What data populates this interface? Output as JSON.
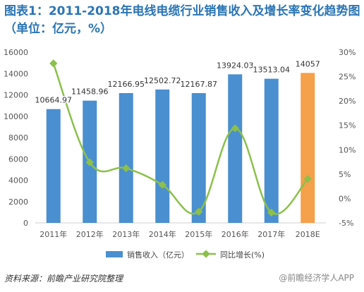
{
  "title": "图表1：2011-2018年电线电缆行业销售收入及增长率变化趋势图（单位：亿元，%）",
  "source": "资料来源：前瞻产业研究院整理",
  "watermark": "@前瞻经济学人APP",
  "colors": {
    "title": "#2a75b5",
    "bar": "#4a8fcf",
    "bar_estimate": "#f5a04a",
    "line": "#8cc04b"
  },
  "chart_data": {
    "type": "bar",
    "categories": [
      "2011年",
      "2012年",
      "2013年",
      "2014年",
      "2015年",
      "2016年",
      "2017年",
      "2018E"
    ],
    "series": [
      {
        "name": "销售收入（亿元）",
        "type": "bar",
        "axis": "left",
        "values": [
          10664.97,
          11458.96,
          12166.95,
          12502.72,
          12167.87,
          13924.03,
          13513.04,
          14057
        ],
        "data_labels": [
          "10664.97",
          "11458.96",
          "12166.95",
          "12502.72",
          "12167.87",
          "13924.03",
          "13513.04",
          "14057"
        ],
        "estimate_index": 7
      },
      {
        "name": "同比增长(%)",
        "type": "line",
        "axis": "right",
        "values": [
          27.7,
          7.4,
          6.2,
          2.8,
          -2.7,
          14.4,
          -2.9,
          4.0
        ]
      }
    ],
    "y_left": {
      "ticks": [
        "0",
        "2000",
        "4000",
        "6000",
        "8000",
        "10000",
        "12000",
        "14000",
        "16000"
      ],
      "min": 0,
      "max": 16000
    },
    "y_right": {
      "ticks": [
        "-5%",
        "0%",
        "5%",
        "10%",
        "15%",
        "20%",
        "25%",
        "30%"
      ],
      "min": -5,
      "max": 30
    },
    "grid": false,
    "legend": "bottom"
  }
}
